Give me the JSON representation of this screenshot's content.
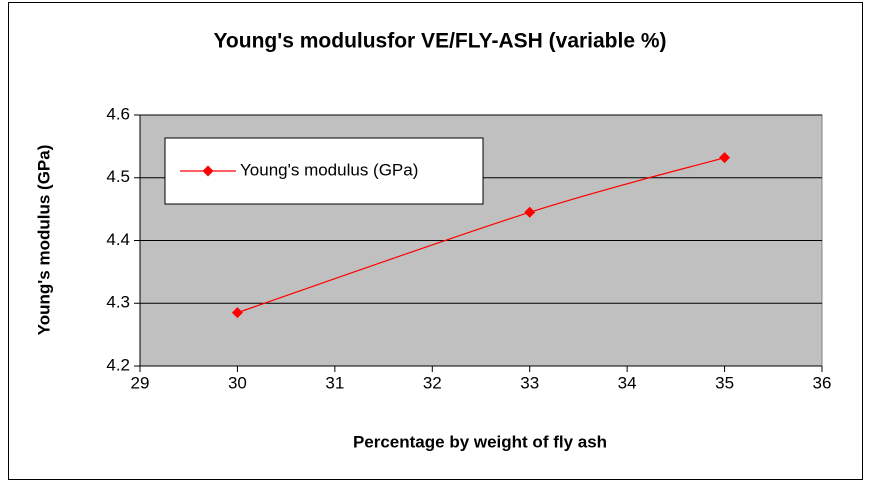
{
  "chart_data": {
    "type": "line",
    "title": "Young's modulusfor VE/FLY-ASH (variable %)",
    "x_label": "Percentage by weight of fly ash",
    "y_label": "Young's modulus (GPa)",
    "x": [
      30,
      33,
      35
    ],
    "series": [
      {
        "name": "Young's modulus (GPa)",
        "color": "#ff0000",
        "values": [
          4.285,
          4.445,
          4.532
        ]
      }
    ],
    "xlim": [
      29,
      36
    ],
    "xticks": [
      29,
      30,
      31,
      32,
      33,
      34,
      35,
      36
    ],
    "ylim": [
      4.2,
      4.6
    ],
    "yticks": [
      4.2,
      4.3,
      4.4,
      4.5,
      4.6
    ],
    "grid": true,
    "legend": "upper left",
    "plot_background": "#c0c0c0"
  }
}
